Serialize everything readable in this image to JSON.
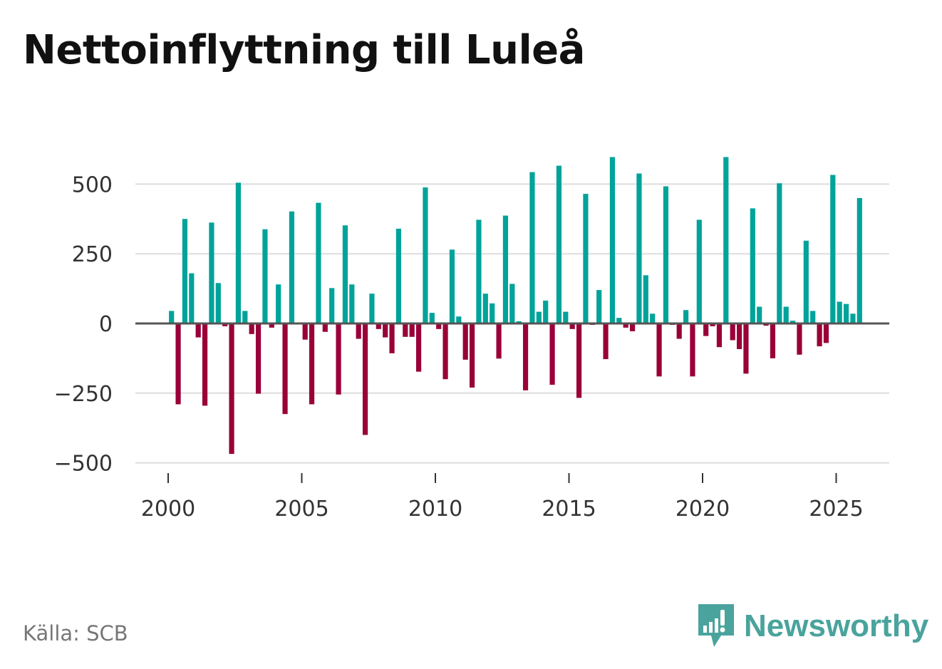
{
  "title": "Nettoinflyttning till Luleå",
  "source": "Källa: SCB",
  "brand": "Newsworthy",
  "colors": {
    "positive": "#00a39a",
    "negative": "#9a0038",
    "grid": "#dddddd",
    "zero": "#555555",
    "brand": "#4aa39d"
  },
  "chart_data": {
    "type": "bar",
    "title": "Nettoinflyttning till Luleå",
    "xlabel": "",
    "ylabel": "",
    "ylim": [
      -520,
      620
    ],
    "y_ticks": [
      500,
      250,
      0,
      -250,
      -500
    ],
    "y_tick_labels": [
      "500",
      "250",
      "0",
      "−250",
      "−500"
    ],
    "x_ticks": [
      2000,
      2005,
      2010,
      2015,
      2020,
      2025
    ],
    "x_tick_labels": [
      "2000",
      "2005",
      "2010",
      "2015",
      "2020",
      "2025"
    ],
    "start_year": 2000,
    "interval": "quarter",
    "values": [
      45,
      -290,
      375,
      180,
      -50,
      -295,
      362,
      145,
      -10,
      -468,
      505,
      45,
      -38,
      -252,
      338,
      -15,
      140,
      -325,
      402,
      0,
      -58,
      -290,
      433,
      -30,
      127,
      -255,
      352,
      140,
      -55,
      -400,
      107,
      -20,
      -50,
      -107,
      340,
      -48,
      -48,
      -173,
      488,
      38,
      -20,
      -200,
      265,
      25,
      -130,
      -230,
      372,
      107,
      72,
      -126,
      387,
      142,
      8,
      -240,
      543,
      42,
      82,
      -220,
      566,
      42,
      -20,
      -267,
      465,
      -5,
      120,
      -128,
      597,
      20,
      -15,
      -28,
      538,
      173,
      35,
      -190,
      492,
      -5,
      -55,
      48,
      -190,
      372,
      -45,
      -10,
      -85,
      597,
      -60,
      -92,
      -180,
      413,
      60,
      -8,
      -125,
      503,
      60,
      10,
      -112,
      297,
      45,
      -82,
      -70,
      533,
      78,
      70,
      35,
      450
    ]
  }
}
